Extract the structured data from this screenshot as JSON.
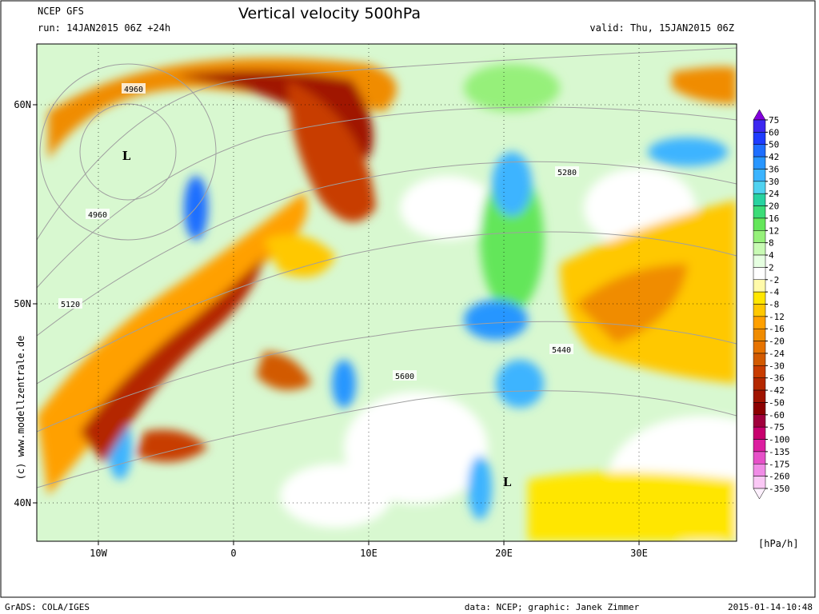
{
  "header": {
    "model": "NCEP GFS",
    "run": "run: 14JAN2015 06Z +24h",
    "title": "Vertical velocity 500hPa",
    "valid": "valid: Thu, 15JAN2015 06Z"
  },
  "map": {
    "lon_ticks": [
      {
        "value": -10,
        "label": "10W"
      },
      {
        "value": 0,
        "label": "0"
      },
      {
        "value": 10,
        "label": "10E"
      },
      {
        "value": 20,
        "label": "20E"
      },
      {
        "value": 30,
        "label": "30E"
      }
    ],
    "lat_ticks": [
      {
        "value": 60,
        "label": "60N"
      },
      {
        "value": 50,
        "label": "50N"
      },
      {
        "value": 40,
        "label": "40N"
      }
    ],
    "contour_labels": [
      "4960",
      "4960",
      "5120",
      "5280",
      "5440",
      "5600"
    ],
    "pressure_labels": [
      "L",
      "L"
    ],
    "copyright": "(c)  www.modellzentrale.de"
  },
  "colorbar": {
    "levels": [
      75,
      60,
      50,
      42,
      36,
      30,
      24,
      20,
      16,
      12,
      8,
      4,
      2,
      -2,
      -4,
      -8,
      -12,
      -16,
      -20,
      -24,
      -30,
      -36,
      -42,
      -50,
      -60,
      -75,
      -100,
      -135,
      -175,
      -260,
      -350
    ],
    "colors": [
      "#8200dc",
      "#3c28f0",
      "#1e3cff",
      "#1e6eff",
      "#2896ff",
      "#3cb4ff",
      "#50d2f0",
      "#28d2a0",
      "#3cdc78",
      "#64e65a",
      "#96f07a",
      "#c8fab4",
      "#e6ffe1",
      "#ffffff",
      "#fffaaa",
      "#ffe600",
      "#ffc800",
      "#ffa000",
      "#f08c00",
      "#e67300",
      "#d25a00",
      "#c83c00",
      "#b42800",
      "#a01400",
      "#8c0000",
      "#a0003c",
      "#c8006e",
      "#dc1ea0",
      "#e650c8",
      "#f08ce6",
      "#fac8f5",
      "#fdf0fd"
    ],
    "unit": "[hPa/h]"
  },
  "footer": {
    "software": "GrADS: COLA/IGES",
    "credits": "data: NCEP; graphic: Janek Zimmer",
    "timestamp": "2015-01-14-10:48"
  }
}
